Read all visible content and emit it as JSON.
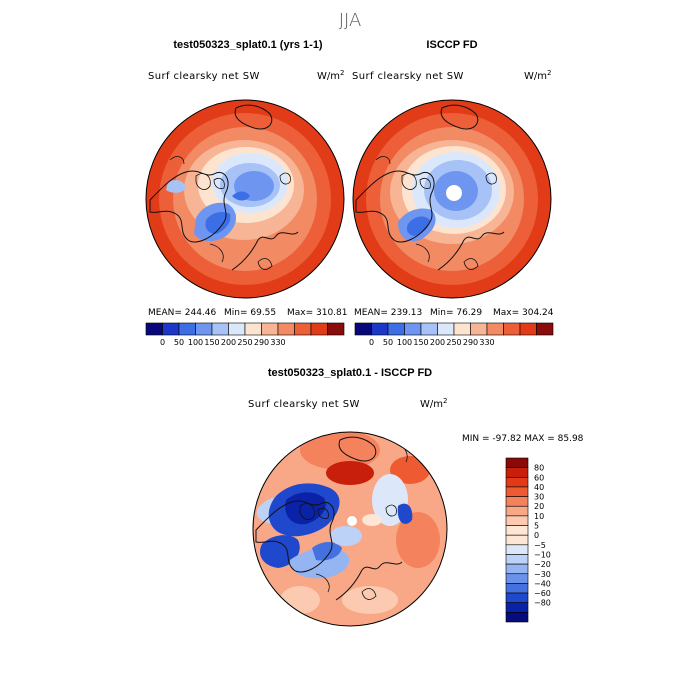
{
  "page": {
    "title": "JJA"
  },
  "chart_data": [
    {
      "type": "heatmap",
      "projection": "polar-stereographic-north",
      "title": "test050323_splat0.1 (yrs 1-1)",
      "variable": "Surf clearsky net SW",
      "units": "W/m2",
      "stats": {
        "mean_label": "MEAN= 244.46",
        "min_label": "Min=  69.55",
        "max_label": "Max= 310.81"
      },
      "mean": 244.46,
      "min": 69.55,
      "max": 310.81,
      "contour_levels": [
        0,
        50,
        100,
        150,
        200,
        250,
        290,
        330
      ],
      "colorbar_ticks": [
        "0",
        "50",
        "100",
        "150",
        "200",
        "250",
        "290",
        "330"
      ]
    },
    {
      "type": "heatmap",
      "projection": "polar-stereographic-north",
      "title": "ISCCP FD",
      "variable": "Surf clearsky net SW",
      "units": "W/m2",
      "stats": {
        "mean_label": "MEAN= 239.13",
        "min_label": "Min=  76.29",
        "max_label": "Max= 304.24"
      },
      "mean": 239.13,
      "min": 76.29,
      "max": 304.24,
      "contour_levels": [
        0,
        50,
        100,
        150,
        200,
        250,
        290,
        330
      ],
      "colorbar_ticks": [
        "0",
        "50",
        "100",
        "150",
        "200",
        "250",
        "290",
        "330"
      ]
    },
    {
      "type": "heatmap",
      "projection": "polar-stereographic-north",
      "title": "test050323_splat0.1 - ISCCP FD",
      "variable": "Surf clearsky net SW",
      "units": "W/m2",
      "stats": {
        "range_label": "MIN = -97.82 MAX =  85.98"
      },
      "min": -97.82,
      "max": 85.98,
      "contour_levels": [
        -80,
        -60,
        -40,
        -30,
        -20,
        -10,
        -5,
        0,
        5,
        10,
        20,
        30,
        40,
        60,
        80
      ],
      "colorbar_ticks": [
        "80",
        "60",
        "40",
        "30",
        "20",
        "10",
        "5",
        "0",
        "−5",
        "−10",
        "−20",
        "−30",
        "−40",
        "−60",
        "−80"
      ]
    }
  ],
  "colors": {
    "abs_scale": [
      "#08087a",
      "#1c38c8",
      "#3c6ee6",
      "#6e96f0",
      "#a6c2f6",
      "#dbe8fb",
      "#fde4d0",
      "#f7b595",
      "#f28a63",
      "#ec5f38",
      "#e23b18",
      "#8a0c0c"
    ],
    "diff_scale": [
      "#8a0a0a",
      "#c81e0c",
      "#e23a16",
      "#ee5a32",
      "#f4825c",
      "#f8a886",
      "#fbcab0",
      "#fde6d6",
      "#fde6d6",
      "#dce8fa",
      "#bcd2f6",
      "#94b4f2",
      "#6b92ea",
      "#4470e0",
      "#2048cc",
      "#0a22a8",
      "#060c7c"
    ]
  }
}
